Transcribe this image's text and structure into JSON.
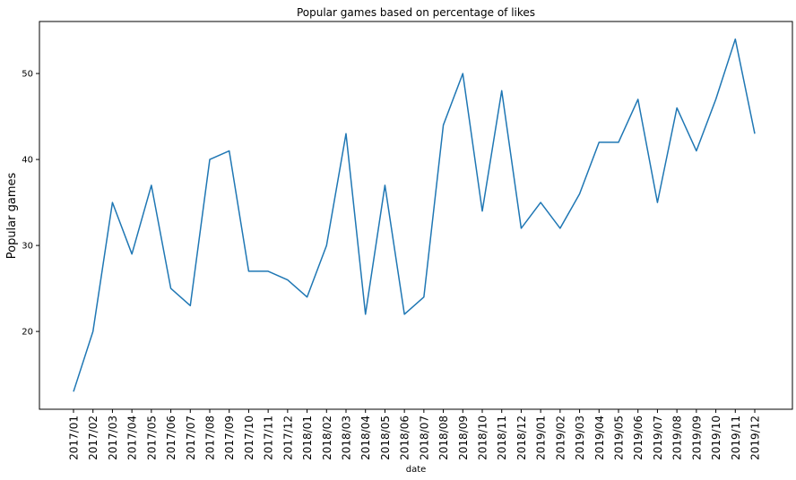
{
  "chart_data": {
    "type": "line",
    "title": "Popular games based on percentage of likes",
    "xlabel": "date",
    "ylabel": "Popular games",
    "categories": [
      "2017/01",
      "2017/02",
      "2017/03",
      "2017/04",
      "2017/05",
      "2017/06",
      "2017/07",
      "2017/08",
      "2017/09",
      "2017/10",
      "2017/11",
      "2017/12",
      "2018/01",
      "2018/02",
      "2018/03",
      "2018/04",
      "2018/05",
      "2018/06",
      "2018/07",
      "2018/08",
      "2018/09",
      "2018/10",
      "2018/11",
      "2018/12",
      "2019/01",
      "2019/02",
      "2019/03",
      "2019/04",
      "2019/05",
      "2019/06",
      "2019/07",
      "2019/08",
      "2019/09",
      "2019/10",
      "2019/11",
      "2019/12"
    ],
    "series": [
      {
        "values": [
          13,
          20,
          35,
          29,
          37,
          25,
          23,
          40,
          41,
          27,
          27,
          26,
          24,
          30,
          43,
          22,
          37,
          22,
          24,
          44,
          50,
          34,
          48,
          32,
          35,
          32,
          36,
          42,
          42,
          47,
          35,
          46,
          41,
          47,
          54,
          43
        ]
      }
    ],
    "yticks": [
      20,
      30,
      40,
      50
    ],
    "ylim": [
      10.95,
      56.05
    ],
    "grid": false,
    "line_color": "#1f77b4"
  }
}
